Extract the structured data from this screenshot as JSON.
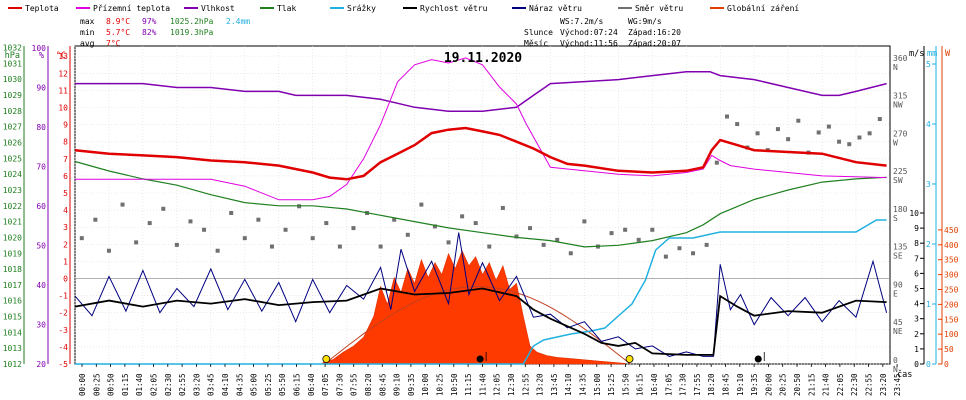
{
  "chart_data": {
    "type": "line",
    "title": "19.11.2020",
    "xlabel": "čas",
    "legend": [
      {
        "name": "Teplota",
        "color": "#e00000"
      },
      {
        "name": "Přízemní teplota",
        "color": "#e000e0"
      },
      {
        "name": "Vlhkost",
        "color": "#8000b0"
      },
      {
        "name": "Tlak",
        "color": "#208020"
      },
      {
        "name": "Srážky",
        "color": "#20b0e0"
      },
      {
        "name": "Rychlost větru",
        "color": "#000000"
      },
      {
        "name": "Náraz větru",
        "color": "#000080"
      },
      {
        "name": "Směr větru",
        "color": "#707070"
      },
      {
        "name": "Globální záření",
        "color": "#e04000"
      }
    ],
    "stats": {
      "max_label": "max",
      "min_label": "min",
      "avg_label": "avg",
      "max": [
        "8.9°C",
        "97%",
        "1025.2hPa",
        "2.4mm"
      ],
      "min": [
        "5.7°C",
        "82%",
        "1019.3hPa"
      ],
      "avg": [
        "7°C"
      ]
    },
    "sun": {
      "wind": "WS:7.2m/s",
      "gust": "WG:9m/s",
      "sun_label": "Slunce",
      "sun_rise": "Východ:07:24",
      "sun_set": "Západ:16:20",
      "moon_label": "Měsíc",
      "moon_rise": "Východ:11:56",
      "moon_set": "Západ:20:07"
    },
    "axes": {
      "hpa_unit": "hPa",
      "pct_unit": "%",
      "degc_unit": "°C",
      "ms_unit": "m/s",
      "mm_unit": "mm",
      "w_unit": "W",
      "hpa_ticks": [
        "1012",
        "1013",
        "1014",
        "1015",
        "1016",
        "1017",
        "1018",
        "1019",
        "1020",
        "1021",
        "1022",
        "1023",
        "1024",
        "1025",
        "1026",
        "1027",
        "1028",
        "1029",
        "1030",
        "1031",
        "1032"
      ],
      "pct_ticks": [
        "20",
        "30",
        "40",
        "50",
        "60",
        "70",
        "80",
        "90",
        "100"
      ],
      "temp_ticks": [
        "-5",
        "-4",
        "-3",
        "-2",
        "-1",
        "0",
        "1",
        "2",
        "3",
        "4",
        "5",
        "6",
        "7",
        "8",
        "9",
        "10",
        "11",
        "12",
        "13"
      ],
      "dir_ticks": [
        [
          "0",
          "N"
        ],
        [
          "45",
          "NE"
        ],
        [
          "90",
          "E"
        ],
        [
          "135",
          "SE"
        ],
        [
          "180",
          "S"
        ],
        [
          "225",
          "SW"
        ],
        [
          "270",
          "W"
        ],
        [
          "315",
          "NW"
        ],
        [
          "360",
          "N"
        ]
      ],
      "ms_ticks": [
        "0",
        "1",
        "2",
        "3",
        "4",
        "5",
        "6",
        "7",
        "8",
        "9",
        "10"
      ],
      "mm_ticks": [
        "0",
        "1",
        "2",
        "3",
        "4",
        "5"
      ],
      "w_ticks": [
        "0",
        "50",
        "100",
        "150",
        "200",
        "250",
        "300",
        "350",
        "400",
        "450"
      ],
      "x_ticks": [
        "00:00",
        "00:25",
        "00:50",
        "01:15",
        "01:40",
        "02:05",
        "02:30",
        "02:55",
        "03:20",
        "03:45",
        "04:10",
        "04:35",
        "05:00",
        "05:25",
        "05:50",
        "06:15",
        "06:40",
        "07:05",
        "07:30",
        "07:55",
        "08:20",
        "08:45",
        "09:10",
        "09:35",
        "10:00",
        "10:25",
        "10:50",
        "11:15",
        "11:40",
        "12:05",
        "12:30",
        "12:55",
        "13:20",
        "13:45",
        "14:10",
        "14:35",
        "15:00",
        "15:25",
        "15:50",
        "16:15",
        "16:40",
        "17:05",
        "17:30",
        "17:55",
        "18:20",
        "18:45",
        "19:10",
        "19:35",
        "20:00",
        "20:25",
        "20:50",
        "21:15",
        "21:40",
        "22:05",
        "22:30",
        "22:55",
        "23:20",
        "23:45"
      ],
      "temp_range": [
        -5,
        13.5
      ],
      "ms_range": [
        0,
        10
      ],
      "mm_range": [
        0,
        5
      ],
      "w_range": [
        0,
        450
      ],
      "pct_range": [
        20,
        100
      ]
    },
    "series": [
      {
        "name": "Teplota",
        "unit": "°C",
        "x": [
          0,
          1,
          2,
          3,
          4,
          5,
          6,
          7,
          7.5,
          8,
          8.5,
          9,
          9.5,
          10,
          10.5,
          11,
          11.5,
          12,
          12.5,
          13,
          13.5,
          14,
          14.5,
          15,
          16,
          17,
          18,
          18.5,
          18.75,
          19,
          19.5,
          20,
          21,
          22,
          23,
          23.9
        ],
        "y": [
          7.5,
          7.3,
          7.2,
          7.1,
          6.9,
          6.8,
          6.6,
          6.2,
          5.9,
          5.8,
          6.0,
          6.8,
          7.3,
          7.8,
          8.5,
          8.7,
          8.8,
          8.6,
          8.4,
          8.0,
          7.6,
          7.1,
          6.7,
          6.6,
          6.3,
          6.2,
          6.3,
          6.5,
          7.5,
          8.1,
          7.8,
          7.5,
          7.4,
          7.3,
          6.8,
          6.6
        ]
      },
      {
        "name": "Přízemní teplota",
        "unit": "°C",
        "x": [
          0,
          2,
          4,
          5,
          6,
          7,
          7.5,
          8,
          8.5,
          9,
          9.3,
          9.5,
          10,
          10.5,
          11,
          11.5,
          12,
          12.5,
          13,
          13.3,
          14,
          15,
          16,
          17,
          18,
          18.5,
          18.75,
          19,
          19.3,
          20,
          21,
          22,
          23.9
        ],
        "y": [
          5.8,
          5.8,
          5.8,
          5.4,
          4.6,
          4.6,
          4.8,
          5.5,
          7.0,
          9.0,
          10.5,
          11.5,
          12.5,
          12.8,
          12.6,
          12.9,
          12.5,
          11.2,
          10.2,
          9.0,
          6.5,
          6.3,
          6.1,
          6.0,
          6.2,
          6.4,
          7.2,
          6.9,
          6.6,
          6.4,
          6.2,
          6.0,
          5.9
        ]
      },
      {
        "name": "Vlhkost",
        "unit": "%",
        "x": [
          0,
          2,
          3,
          4,
          5,
          6,
          6.5,
          7,
          8,
          9,
          10,
          11,
          12,
          13,
          13.5,
          14,
          16,
          17,
          18,
          18.7,
          19,
          20,
          21,
          22,
          22.5,
          23,
          23.9
        ],
        "y": [
          91,
          91,
          90,
          90,
          89,
          89,
          88,
          88,
          88,
          87,
          85,
          84,
          84,
          85,
          88,
          91,
          92,
          93,
          94,
          94,
          93,
          92,
          90,
          88,
          88,
          89,
          91
        ]
      },
      {
        "name": "Tlak",
        "unit": "hPa",
        "x": [
          0,
          1,
          2,
          3,
          4,
          5,
          6,
          7,
          8,
          9,
          10,
          11,
          12,
          13,
          14,
          15,
          16,
          17,
          18,
          18.5,
          19,
          20,
          21,
          22,
          23,
          23.9
        ],
        "y": [
          1024.8,
          1024.2,
          1023.7,
          1023.3,
          1022.7,
          1022.2,
          1022.0,
          1022.0,
          1021.8,
          1021.4,
          1021.0,
          1020.6,
          1020.3,
          1020.0,
          1019.8,
          1019.4,
          1019.5,
          1019.8,
          1020.3,
          1020.8,
          1021.5,
          1022.4,
          1023.0,
          1023.5,
          1023.7,
          1023.8
        ]
      },
      {
        "name": "Srážky",
        "unit": "mm",
        "x": [
          0,
          13.2,
          13.5,
          13.8,
          14.2,
          14.6,
          15.2,
          15.6,
          16.0,
          16.4,
          16.8,
          17.1,
          17.5,
          18.2,
          19,
          20,
          21,
          22,
          23,
          23.6,
          23.9
        ],
        "y": [
          0,
          0,
          0.3,
          0.4,
          0.45,
          0.5,
          0.55,
          0.6,
          0.8,
          1.0,
          1.4,
          1.9,
          2.1,
          2.1,
          2.2,
          2.2,
          2.2,
          2.2,
          2.2,
          2.4,
          2.4
        ]
      },
      {
        "name": "Rychlost větru",
        "unit": "m/s",
        "x": [
          0,
          1,
          2,
          3,
          4,
          5,
          6,
          7,
          8,
          9,
          10,
          11,
          12,
          13,
          13.5,
          14,
          15,
          15.5,
          16,
          16.5,
          17,
          18,
          18.3,
          18.8,
          19,
          19.5,
          20,
          21,
          22,
          23,
          23.9
        ],
        "y": [
          3.8,
          4.2,
          3.8,
          4.2,
          4.0,
          4.3,
          3.9,
          4.1,
          4.2,
          5.0,
          4.6,
          4.7,
          5.0,
          4.5,
          3.6,
          3.0,
          2.0,
          1.4,
          1.2,
          1.4,
          0.7,
          0.6,
          0.6,
          0.6,
          4.5,
          3.8,
          3.2,
          3.5,
          3.4,
          4.2,
          4.1
        ]
      },
      {
        "name": "Náraz větru",
        "unit": "m/s",
        "x": [
          0,
          0.5,
          1,
          1.5,
          2,
          2.5,
          3,
          3.5,
          4,
          4.5,
          5,
          5.5,
          6,
          6.5,
          7,
          7.5,
          8,
          8.5,
          9,
          9.3,
          9.6,
          10,
          10.5,
          11,
          11.3,
          11.6,
          12,
          12.5,
          13,
          13.5,
          14,
          14.5,
          15,
          15.5,
          16,
          16.5,
          17,
          17.5,
          18,
          18.5,
          18.8,
          19,
          19.3,
          19.6,
          20,
          20.5,
          21,
          21.5,
          22,
          22.5,
          23,
          23.5,
          23.9
        ],
        "y": [
          4.5,
          3.2,
          5.8,
          3.5,
          6.2,
          3.4,
          5.0,
          3.8,
          6.3,
          3.6,
          5.6,
          3.5,
          5.4,
          2.8,
          5.6,
          3.4,
          5.2,
          4.3,
          6.4,
          3.6,
          7.6,
          4.8,
          6.8,
          4.0,
          8.7,
          4.6,
          6.7,
          4.2,
          5.8,
          3.1,
          3.3,
          2.4,
          2.8,
          1.5,
          1.8,
          1.0,
          1.2,
          0.5,
          0.8,
          0.5,
          0.5,
          6.6,
          3.6,
          4.6,
          2.6,
          4.4,
          3.2,
          4.4,
          2.8,
          4.2,
          3.1,
          6.8,
          3.4
        ]
      },
      {
        "name": "Směr větru",
        "unit": "°",
        "x": [
          0.2,
          0.6,
          1.0,
          1.4,
          1.8,
          2.2,
          2.6,
          3.0,
          3.4,
          3.8,
          4.2,
          4.6,
          5.0,
          5.4,
          5.8,
          6.2,
          6.6,
          7.0,
          7.4,
          7.8,
          8.2,
          8.6,
          9.0,
          9.4,
          9.8,
          10.2,
          10.6,
          11.0,
          11.4,
          11.8,
          12.2,
          12.6,
          13.0,
          13.4,
          13.8,
          14.2,
          14.6,
          15.0,
          15.4,
          15.8,
          16.2,
          16.6,
          17.0,
          17.4,
          17.8,
          18.2,
          18.6,
          18.9,
          19.2,
          19.5,
          19.8,
          20.1,
          20.4,
          20.7,
          21.0,
          21.3,
          21.6,
          21.9,
          22.2,
          22.5,
          22.8,
          23.1,
          23.4,
          23.7
        ],
        "y": [
          150,
          172,
          135,
          190,
          145,
          168,
          185,
          142,
          170,
          160,
          135,
          180,
          150,
          172,
          140,
          160,
          188,
          150,
          168,
          140,
          162,
          180,
          140,
          172,
          154,
          190,
          164,
          145,
          176,
          168,
          140,
          186,
          152,
          162,
          142,
          148,
          132,
          170,
          140,
          156,
          160,
          148,
          160,
          128,
          138,
          132,
          142,
          240,
          295,
          286,
          258,
          275,
          255,
          280,
          268,
          290,
          252,
          276,
          283,
          265,
          262,
          270,
          275,
          292
        ]
      },
      {
        "name": "Globální záření",
        "unit": "W",
        "x": [
          7.3,
          7.6,
          7.9,
          8.2,
          8.5,
          8.8,
          9.0,
          9.2,
          9.4,
          9.6,
          9.8,
          10.0,
          10.2,
          10.4,
          10.6,
          10.8,
          11.0,
          11.2,
          11.4,
          11.6,
          11.8,
          12.0,
          12.2,
          12.4,
          12.6,
          12.8,
          13.0,
          13.2,
          13.4,
          13.6,
          13.9,
          14.2,
          14.6,
          15.0,
          15.4,
          15.8,
          16.2
        ],
        "y": [
          5,
          15,
          40,
          60,
          90,
          160,
          260,
          200,
          290,
          240,
          320,
          270,
          350,
          290,
          340,
          300,
          370,
          320,
          380,
          330,
          360,
          300,
          340,
          280,
          330,
          250,
          270,
          160,
          60,
          40,
          28,
          22,
          18,
          14,
          10,
          6,
          2
        ]
      }
    ],
    "clear_sky": {
      "name": "Globální záření",
      "x": [
        7.35,
        11.85,
        16.35
      ],
      "peak": 260
    },
    "markers": [
      {
        "type": "sunrise",
        "x": 7.4
      },
      {
        "type": "sunset",
        "x": 16.33
      },
      {
        "type": "moonrise",
        "x": 11.93
      },
      {
        "type": "moonset",
        "x": 20.12
      }
    ]
  }
}
